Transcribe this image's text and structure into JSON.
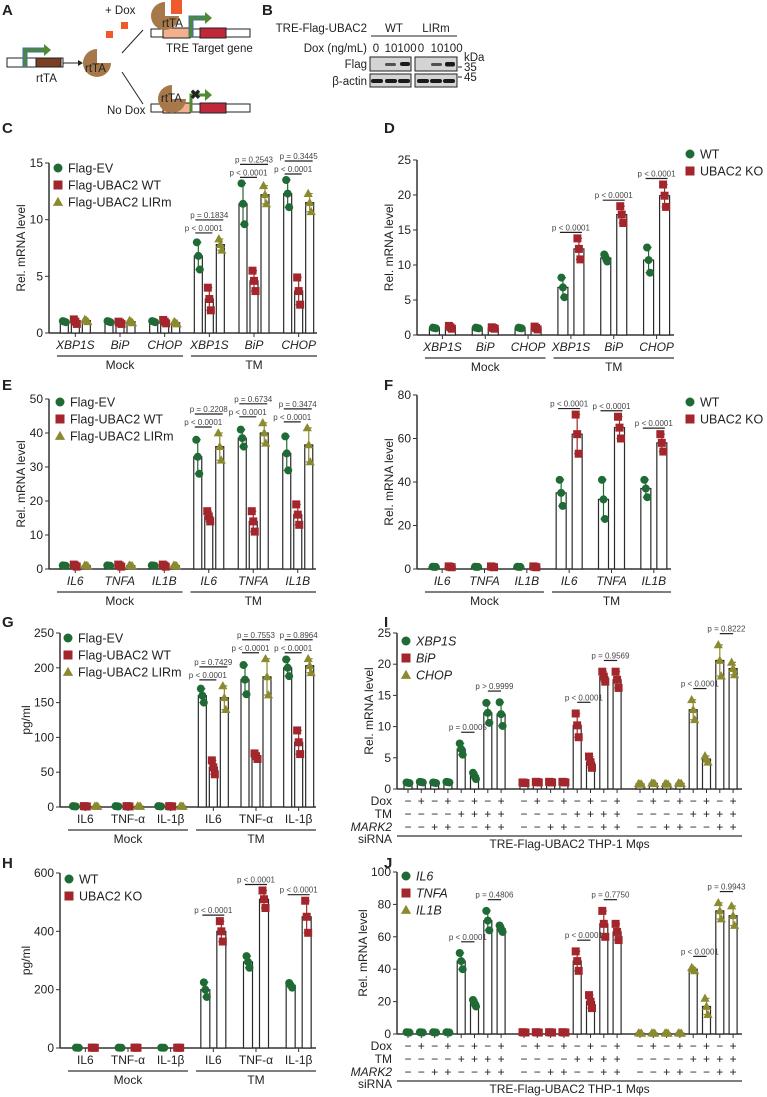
{
  "colors": {
    "green": "#1f6a35",
    "red": "#a3262c",
    "olive": "#8c8a2f",
    "peach": "#f2b08f",
    "brown": "#a6784a",
    "dark_brown": "#7a3f22",
    "orange": "#f2592a",
    "arrow_green": "#4e8a32"
  },
  "panel_a": {
    "label": "A",
    "plus_dox": "+ Dox",
    "no_dox": "No Dox",
    "rtta": "rtTA",
    "tre": "TRE",
    "target_gene": "Target gene"
  },
  "panel_b": {
    "label": "B",
    "construct": "TRE-Flag-UBAC2",
    "groups": [
      "WT",
      "LIRm"
    ],
    "dox_label": "Dox (ng/mL)",
    "doses": [
      "0",
      "10",
      "100"
    ],
    "rows": [
      "Flag",
      "β-actin"
    ],
    "kda_label": "kDa",
    "markers": [
      "35",
      "45"
    ]
  },
  "chart_data": [
    {
      "panel": "C",
      "type": "bar",
      "ylabel": "Rel. mRNA level",
      "ylim": [
        0,
        15
      ],
      "yticks": [
        0,
        5,
        10,
        15
      ],
      "categories": [
        "XBP1S",
        "BiP",
        "CHOP",
        "XBP1S",
        "BiP",
        "CHOP"
      ],
      "groups": [
        "Mock",
        "TM"
      ],
      "legend": "top-left",
      "series": [
        {
          "name": "Flag-EV",
          "color": "#1f6a35",
          "marker": "circle",
          "values": [
            1,
            1,
            1,
            6.8,
            11.4,
            12.3
          ],
          "sd": [
            0.05,
            0.05,
            0.05,
            1.2,
            1.8,
            1.2
          ]
        },
        {
          "name": "Flag-UBAC2 WT",
          "color": "#a3262c",
          "marker": "square",
          "values": [
            1,
            0.9,
            1,
            3.0,
            4.6,
            3.7
          ],
          "sd": [
            0.2,
            0.1,
            0.15,
            1.0,
            0.9,
            1.2
          ]
        },
        {
          "name": "Flag-UBAC2 LIRm",
          "color": "#8c8a2f",
          "marker": "triangle",
          "values": [
            1.1,
            1,
            0.9,
            7.8,
            12.2,
            11.5
          ],
          "sd": [
            0.1,
            0.1,
            0.1,
            0.5,
            0.8,
            0.8
          ]
        }
      ],
      "pvalues": [
        {
          "category": 3,
          "pair": [
            0,
            1
          ],
          "text": "p < 0.0001"
        },
        {
          "category": 3,
          "pair": [
            0,
            2
          ],
          "text": "p = 0.1834"
        },
        {
          "category": 4,
          "pair": [
            0,
            1
          ],
          "text": "p < 0.0001"
        },
        {
          "category": 4,
          "pair": [
            0,
            2
          ],
          "text": "p = 0.2543"
        },
        {
          "category": 5,
          "pair": [
            0,
            1
          ],
          "text": "p < 0.0001"
        },
        {
          "category": 5,
          "pair": [
            0,
            2
          ],
          "text": "p = 0.3445"
        }
      ]
    },
    {
      "panel": "D",
      "type": "bar",
      "ylabel": "Rel. mRNA level",
      "ylim": [
        0,
        25
      ],
      "yticks": [
        0,
        5,
        10,
        15,
        20,
        25
      ],
      "categories": [
        "XBP1S",
        "BiP",
        "CHOP",
        "XBP1S",
        "BiP",
        "CHOP"
      ],
      "groups": [
        "Mock",
        "TM"
      ],
      "legend": "right",
      "series": [
        {
          "name": "WT",
          "color": "#1f6a35",
          "marker": "circle",
          "values": [
            1,
            1,
            1,
            6.8,
            11.0,
            10.7
          ],
          "sd": [
            0.05,
            0.05,
            0.05,
            1.4,
            0.5,
            1.8
          ]
        },
        {
          "name": "UBAC2 KO",
          "color": "#a3262c",
          "marker": "square",
          "values": [
            1.1,
            1,
            1,
            12.3,
            17.2,
            19.9
          ],
          "sd": [
            0.2,
            0.1,
            0.2,
            1.5,
            1.2,
            1.6
          ]
        }
      ],
      "pvalues": [
        {
          "category": 3,
          "pair": [
            0,
            1
          ],
          "text": "p < 0.0001"
        },
        {
          "category": 4,
          "pair": [
            0,
            1
          ],
          "text": "p < 0.0001"
        },
        {
          "category": 5,
          "pair": [
            0,
            1
          ],
          "text": "p < 0.0001"
        }
      ]
    },
    {
      "panel": "E",
      "type": "bar",
      "ylabel": "Rel. mRNA level",
      "ylim": [
        0,
        50
      ],
      "yticks": [
        0,
        10,
        20,
        30,
        40,
        50
      ],
      "categories": [
        "IL6",
        "TNFA",
        "IL1B",
        "IL6",
        "TNFA",
        "IL1B"
      ],
      "groups": [
        "Mock",
        "TM"
      ],
      "legend": "top-left",
      "series": [
        {
          "name": "Flag-EV",
          "color": "#1f6a35",
          "marker": "circle",
          "values": [
            1,
            1,
            1,
            33,
            38.5,
            34
          ],
          "sd": [
            0.05,
            0.05,
            0.05,
            5,
            2.5,
            5
          ]
        },
        {
          "name": "Flag-UBAC2 WT",
          "color": "#a3262c",
          "marker": "square",
          "values": [
            1,
            1,
            1,
            15.5,
            14,
            16
          ],
          "sd": [
            0.3,
            0.3,
            0.3,
            1.5,
            3,
            3
          ]
        },
        {
          "name": "Flag-UBAC2 LIRm",
          "color": "#8c8a2f",
          "marker": "triangle",
          "values": [
            1,
            1,
            1,
            36,
            40,
            36.5
          ],
          "sd": [
            0.1,
            0.1,
            0.1,
            4,
            3,
            5
          ]
        }
      ],
      "pvalues": [
        {
          "category": 3,
          "pair": [
            0,
            1
          ],
          "text": "p < 0.0001"
        },
        {
          "category": 3,
          "pair": [
            0,
            2
          ],
          "text": "p = 0.2208"
        },
        {
          "category": 4,
          "pair": [
            0,
            1
          ],
          "text": "p < 0.0001"
        },
        {
          "category": 4,
          "pair": [
            0,
            2
          ],
          "text": "p = 0.6734"
        },
        {
          "category": 5,
          "pair": [
            0,
            1
          ],
          "text": "p < 0.0001"
        },
        {
          "category": 5,
          "pair": [
            0,
            2
          ],
          "text": "p = 0.3474"
        }
      ]
    },
    {
      "panel": "F",
      "type": "bar",
      "ylabel": "Rel. mRNA level",
      "ylim": [
        0,
        80
      ],
      "yticks": [
        0,
        20,
        40,
        60,
        80
      ],
      "categories": [
        "IL6",
        "TNFA",
        "IL1B",
        "IL6",
        "TNFA",
        "IL1B"
      ],
      "groups": [
        "Mock",
        "TM"
      ],
      "legend": "right",
      "series": [
        {
          "name": "WT",
          "color": "#1f6a35",
          "marker": "circle",
          "values": [
            1,
            1,
            1,
            35,
            32,
            37
          ],
          "sd": [
            0.05,
            0.05,
            0.05,
            6,
            9,
            4
          ]
        },
        {
          "name": "UBAC2 KO",
          "color": "#a3262c",
          "marker": "square",
          "values": [
            1,
            1,
            1,
            62,
            65,
            58
          ],
          "sd": [
            0.2,
            0.2,
            0.2,
            9,
            5,
            4
          ]
        }
      ],
      "pvalues": [
        {
          "category": 3,
          "pair": [
            0,
            1
          ],
          "text": "p < 0.0001"
        },
        {
          "category": 4,
          "pair": [
            0,
            1
          ],
          "text": "p < 0.0001"
        },
        {
          "category": 5,
          "pair": [
            0,
            1
          ],
          "text": "p < 0.0001"
        }
      ]
    },
    {
      "panel": "G",
      "type": "bar",
      "ylabel": "pg/ml",
      "ylim": [
        0,
        250
      ],
      "yticks": [
        0,
        50,
        100,
        150,
        200,
        250
      ],
      "categories": [
        "IL6",
        "TNF-α",
        "IL-1β",
        "IL6",
        "TNF-α",
        "IL-1β"
      ],
      "groups": [
        "Mock",
        "TM"
      ],
      "legend": "top-left",
      "series": [
        {
          "name": "Flag-EV",
          "color": "#1f6a35",
          "marker": "circle",
          "values": [
            1,
            1,
            1,
            160,
            183,
            200
          ],
          "sd": [
            0.2,
            0.2,
            0.2,
            10,
            21,
            12
          ]
        },
        {
          "name": "Flag-UBAC2 WT",
          "color": "#a3262c",
          "marker": "square",
          "values": [
            1,
            1,
            1,
            57,
            73,
            93
          ],
          "sd": [
            0.2,
            0.2,
            0.2,
            10,
            4,
            17
          ]
        },
        {
          "name": "Flag-UBAC2 LIRm",
          "color": "#8c8a2f",
          "marker": "triangle",
          "values": [
            1,
            1,
            1,
            157,
            187,
            203
          ],
          "sd": [
            0.2,
            0.2,
            0.2,
            17,
            26,
            10
          ]
        }
      ],
      "pvalues": [
        {
          "category": 3,
          "pair": [
            0,
            1
          ],
          "text": "p < 0.0001"
        },
        {
          "category": 3,
          "pair": [
            0,
            2
          ],
          "text": "p = 0.7429"
        },
        {
          "category": 4,
          "pair": [
            0,
            1
          ],
          "text": "p < 0.0001"
        },
        {
          "category": 4,
          "pair": [
            0,
            2
          ],
          "text": "p = 0.7553"
        },
        {
          "category": 5,
          "pair": [
            0,
            1
          ],
          "text": "p < 0.0001"
        },
        {
          "category": 5,
          "pair": [
            0,
            2
          ],
          "text": "p = 0.8964"
        }
      ]
    },
    {
      "panel": "H",
      "type": "bar",
      "ylabel": "pg/ml",
      "ylim": [
        0,
        600
      ],
      "yticks": [
        0,
        200,
        400,
        600
      ],
      "categories": [
        "IL6",
        "TNF-α",
        "IL-1β",
        "IL6",
        "TNF-α",
        "IL-1β"
      ],
      "groups": [
        "Mock",
        "TM"
      ],
      "legend": "top-left",
      "series": [
        {
          "name": "WT",
          "color": "#1f6a35",
          "marker": "circle",
          "values": [
            1,
            1,
            1,
            200,
            295,
            215
          ],
          "sd": [
            0.2,
            0.2,
            0.2,
            25,
            20,
            8
          ]
        },
        {
          "name": "UBAC2 KO",
          "color": "#a3262c",
          "marker": "square",
          "values": [
            1,
            1,
            1,
            400,
            510,
            450
          ],
          "sd": [
            0.2,
            0.2,
            0.2,
            35,
            30,
            55
          ]
        }
      ],
      "pvalues": [
        {
          "category": 3,
          "pair": [
            0,
            1
          ],
          "text": "p < 0.0001"
        },
        {
          "category": 4,
          "pair": [
            0,
            1
          ],
          "text": "p < 0.0001"
        },
        {
          "category": 5,
          "pair": [
            0,
            1
          ],
          "text": "p < 0.0001"
        }
      ]
    },
    {
      "panel": "I",
      "type": "bar",
      "ylabel": "Rel. mRNA level",
      "ylim": [
        0,
        25
      ],
      "yticks": [
        0,
        5,
        10,
        15,
        20,
        25
      ],
      "legend": "top-left",
      "conditions": {
        "row_labels": [
          "Dox",
          "TM",
          "MARK2"
        ],
        "sub_label": "siRNA",
        "dox": [
          "−",
          "+",
          "−",
          "+",
          "−",
          "+",
          "−",
          "+"
        ],
        "tm": [
          "−",
          "−",
          "−",
          "−",
          "+",
          "+",
          "+",
          "+"
        ],
        "mark2": [
          "−",
          "−",
          "+",
          "+",
          "−",
          "−",
          "+",
          "+"
        ]
      },
      "caption": "TRE-Flag-UBAC2 THP-1 Mφs",
      "series": [
        {
          "name": "XBP1S",
          "color": "#1f6a35",
          "marker": "circle",
          "values": [
            1,
            1.1,
            1,
            1.1,
            6.4,
            2.1,
            12.2,
            12.0
          ],
          "sd": [
            0.05,
            0.05,
            0.05,
            0.05,
            0.9,
            0.5,
            1.6,
            1.9
          ]
        },
        {
          "name": "BiP",
          "color": "#a3262c",
          "marker": "square",
          "values": [
            1,
            1.1,
            1.1,
            1.1,
            10.2,
            4.3,
            18.0,
            17.5
          ],
          "sd": [
            0.05,
            0.05,
            0.05,
            0.05,
            1.9,
            0.9,
            0.8,
            1.3
          ]
        },
        {
          "name": "CHOP",
          "color": "#8c8a2f",
          "marker": "triangle",
          "values": [
            0.8,
            0.9,
            0.8,
            0.9,
            12.7,
            4.8,
            20.6,
            19.3
          ],
          "sd": [
            0.05,
            0.05,
            0.05,
            0.05,
            1.6,
            0.5,
            2.5,
            1.0
          ]
        }
      ],
      "pvalues": [
        {
          "series": 0,
          "pair": [
            4,
            5
          ],
          "text": "p = 0.0005"
        },
        {
          "series": 0,
          "pair": [
            6,
            7
          ],
          "text": "p > 0.9999"
        },
        {
          "series": 1,
          "pair": [
            4,
            5
          ],
          "text": "p < 0.0001"
        },
        {
          "series": 1,
          "pair": [
            6,
            7
          ],
          "text": "p = 0.9569"
        },
        {
          "series": 2,
          "pair": [
            4,
            5
          ],
          "text": "p < 0.0001"
        },
        {
          "series": 2,
          "pair": [
            6,
            7
          ],
          "text": "p = 0.8222"
        }
      ]
    },
    {
      "panel": "J",
      "type": "bar",
      "ylabel": "Rel. mRNA level",
      "ylim": [
        0,
        100
      ],
      "yticks": [
        0,
        20,
        40,
        60,
        80,
        100
      ],
      "legend": "top-left",
      "conditions": {
        "row_labels": [
          "Dox",
          "TM",
          "MARK2"
        ],
        "sub_label": "siRNA",
        "dox": [
          "−",
          "+",
          "−",
          "+",
          "−",
          "+",
          "−",
          "+"
        ],
        "tm": [
          "−",
          "−",
          "−",
          "−",
          "+",
          "+",
          "+",
          "+"
        ],
        "mark2": [
          "−",
          "−",
          "+",
          "+",
          "−",
          "−",
          "+",
          "+"
        ]
      },
      "caption": "TRE-Flag-UBAC2 THP-1 Mφs",
      "series": [
        {
          "name": "IL6",
          "color": "#1f6a35",
          "marker": "circle",
          "values": [
            1,
            1,
            1,
            1,
            45,
            19,
            70,
            65
          ],
          "sd": [
            0.1,
            0.1,
            0.1,
            0.1,
            5,
            2,
            6,
            2
          ]
        },
        {
          "name": "TNFA",
          "color": "#a3262c",
          "marker": "square",
          "values": [
            1,
            1,
            1,
            1,
            45,
            20,
            68,
            63
          ],
          "sd": [
            0.1,
            0.1,
            0.1,
            0.1,
            6,
            4,
            8,
            5
          ]
        },
        {
          "name": "IL1B",
          "color": "#8c8a2f",
          "marker": "triangle",
          "values": [
            0.5,
            0.5,
            0.5,
            0.5,
            40,
            17,
            76,
            73
          ],
          "sd": [
            0.1,
            0.1,
            0.1,
            0.1,
            1,
            5,
            5,
            6
          ]
        }
      ],
      "pvalues": [
        {
          "series": 0,
          "pair": [
            4,
            5
          ],
          "text": "p < 0.0001"
        },
        {
          "series": 0,
          "pair": [
            6,
            7
          ],
          "text": "p = 0.4806"
        },
        {
          "series": 1,
          "pair": [
            4,
            5
          ],
          "text": "p < 0.0001"
        },
        {
          "series": 1,
          "pair": [
            6,
            7
          ],
          "text": "p = 0.7750"
        },
        {
          "series": 2,
          "pair": [
            4,
            5
          ],
          "text": "p < 0.0001"
        },
        {
          "series": 2,
          "pair": [
            6,
            7
          ],
          "text": "p = 0.9943"
        }
      ]
    }
  ]
}
